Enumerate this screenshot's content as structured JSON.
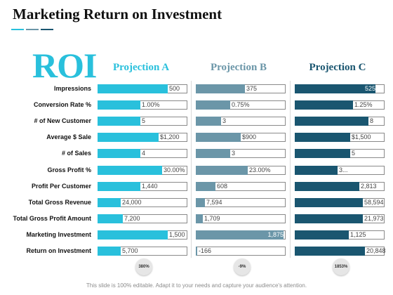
{
  "slide": {
    "title": "Marketing Return on Investment",
    "roi_label": "ROI",
    "footer": "This slide is 100% editable. Adapt it to your needs and capture your audience's attention.",
    "accent_colors": [
      "#29c0dc",
      "#6b96a8",
      "#1a5670"
    ]
  },
  "columns": [
    {
      "name": "Projection A",
      "color": "#29c0dc",
      "badge": "380%"
    },
    {
      "name": "Projection B",
      "color": "#6b96a8",
      "badge": "-9%"
    },
    {
      "name": "Projection C",
      "color": "#1a5670",
      "badge": "1853%"
    }
  ],
  "rows": [
    {
      "label": "Impressions",
      "values": [
        "500",
        "375",
        "525"
      ],
      "fills": [
        0.78,
        0.55,
        0.9
      ]
    },
    {
      "label": "Conversion Rate %",
      "values": [
        "1.00%",
        "0.75%",
        "1.25%"
      ],
      "fills": [
        0.48,
        0.38,
        0.65
      ]
    },
    {
      "label": "# of New Customer",
      "values": [
        "5",
        "3",
        "8"
      ],
      "fills": [
        0.48,
        0.28,
        0.82
      ]
    },
    {
      "label": "Average $ Sale",
      "values": [
        "$1,200",
        "$900",
        "$1,500"
      ],
      "fills": [
        0.68,
        0.5,
        0.62
      ]
    },
    {
      "label": "# of Sales",
      "values": [
        "4",
        "3",
        "5"
      ],
      "fills": [
        0.48,
        0.38,
        0.62
      ]
    },
    {
      "label": "Gross Profit %",
      "values": [
        "30.00%",
        "23.00%",
        "3..."
      ],
      "fills": [
        0.72,
        0.58,
        0.48
      ]
    },
    {
      "label": "Profit Per Customer",
      "values": [
        "1,440",
        "608",
        "2,813"
      ],
      "fills": [
        0.48,
        0.22,
        0.72
      ]
    },
    {
      "label": "Total Gross Revenue",
      "values": [
        "24,000",
        "7,594",
        "58,594"
      ],
      "fills": [
        0.26,
        0.1,
        0.76
      ]
    },
    {
      "label": "Total Gross Profit Amount",
      "values": [
        "7,200",
        "1,709",
        "21,973"
      ],
      "fills": [
        0.28,
        0.08,
        0.76
      ]
    },
    {
      "label": "Marketing Investment",
      "values": [
        "1,500",
        "1,875",
        "1,125"
      ],
      "fills": [
        0.78,
        0.98,
        0.6
      ]
    },
    {
      "label": "Return on Investment",
      "values": [
        "5,700",
        "-166",
        "20,848"
      ],
      "fills": [
        0.26,
        0.01,
        0.78
      ]
    }
  ]
}
